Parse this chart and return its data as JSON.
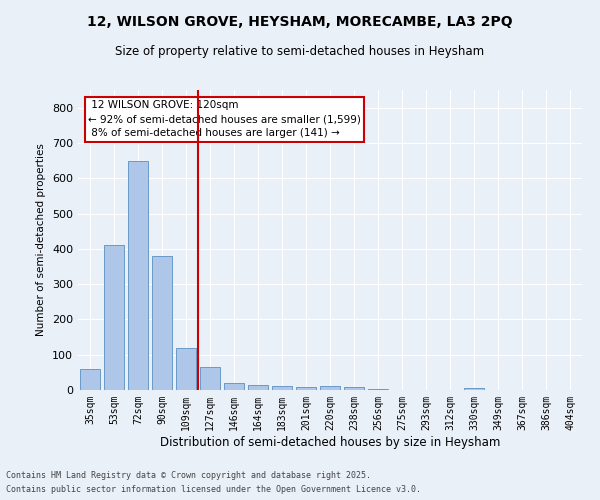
{
  "title1": "12, WILSON GROVE, HEYSHAM, MORECAMBE, LA3 2PQ",
  "title2": "Size of property relative to semi-detached houses in Heysham",
  "xlabel": "Distribution of semi-detached houses by size in Heysham",
  "ylabel": "Number of semi-detached properties",
  "property_label": "12 WILSON GROVE: 120sqm",
  "pct_smaller": "92%",
  "pct_larger": "8%",
  "n_smaller": "1,599",
  "n_larger": "141",
  "bar_labels": [
    "35sqm",
    "53sqm",
    "72sqm",
    "90sqm",
    "109sqm",
    "127sqm",
    "146sqm",
    "164sqm",
    "183sqm",
    "201sqm",
    "220sqm",
    "238sqm",
    "256sqm",
    "275sqm",
    "293sqm",
    "312sqm",
    "330sqm",
    "349sqm",
    "367sqm",
    "386sqm",
    "404sqm"
  ],
  "bar_values": [
    60,
    410,
    650,
    380,
    120,
    65,
    20,
    15,
    10,
    8,
    12,
    8,
    4,
    0,
    0,
    0,
    5,
    0,
    0,
    0,
    0
  ],
  "bar_color": "#aec6e8",
  "bar_edge_color": "#5a8fc2",
  "vline_x_index": 4.5,
  "ylim": [
    0,
    850
  ],
  "yticks": [
    0,
    100,
    200,
    300,
    400,
    500,
    600,
    700,
    800
  ],
  "background_color": "#eaf0f8",
  "grid_color": "#ffffff",
  "annotation_box_color": "#ffffff",
  "annotation_box_edge": "#cc0000",
  "vline_color": "#cc0000",
  "footnote1": "Contains HM Land Registry data © Crown copyright and database right 2025.",
  "footnote2": "Contains public sector information licensed under the Open Government Licence v3.0."
}
